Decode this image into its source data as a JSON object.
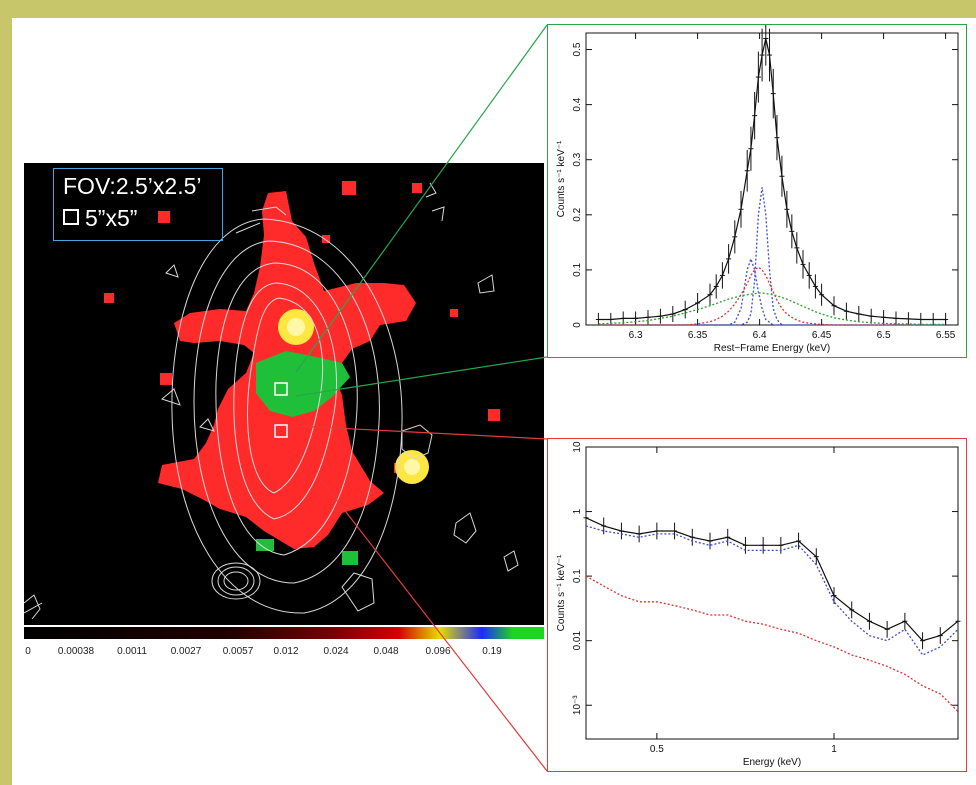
{
  "image_panel": {
    "fov_label": "FOV:2.5’x2.5’",
    "box_label": "5”x5”"
  },
  "colorbar": {
    "ticks": [
      "0",
      "0.00038",
      "0.0011",
      "0.0027",
      "0.0057",
      "0.012",
      "0.024",
      "0.048",
      "0.096",
      "0.19"
    ]
  },
  "colors": {
    "frame": "#c7c66a",
    "fov_box": "#4aa3d8",
    "upper_callout": "#2aa54a",
    "lower_callout": "#e23b3b",
    "red_emission": "#ff2a2a",
    "green_emission": "#1fbf3a",
    "yellow_emission": "#ffe640",
    "contours": "#d8d8d8"
  },
  "chart_data": [
    {
      "type": "line",
      "xlabel": "Rest−Frame Energy (keV)",
      "ylabel": "Counts s⁻¹ keV⁻¹",
      "xlim": [
        6.26,
        6.56
      ],
      "ylim": [
        0,
        0.53
      ],
      "xticks": [
        6.3,
        6.35,
        6.4,
        6.45,
        6.5,
        6.55
      ],
      "xtick_labels": [
        "6.3",
        "6.35",
        "6.4",
        "6.45",
        "6.5",
        "6.55"
      ],
      "yticks": [
        0,
        0.1,
        0.2,
        0.3,
        0.4,
        0.5
      ],
      "ytick_labels": [
        "0",
        "0.1",
        "0.2",
        "0.3",
        "0.4",
        "0.5"
      ],
      "x": [
        6.27,
        6.28,
        6.29,
        6.3,
        6.31,
        6.32,
        6.33,
        6.34,
        6.35,
        6.36,
        6.365,
        6.37,
        6.375,
        6.38,
        6.385,
        6.39,
        6.393,
        6.396,
        6.399,
        6.402,
        6.405,
        6.408,
        6.411,
        6.414,
        6.418,
        6.422,
        6.426,
        6.43,
        6.435,
        6.44,
        6.445,
        6.45,
        6.46,
        6.47,
        6.48,
        6.49,
        6.5,
        6.51,
        6.52,
        6.53,
        6.54,
        6.55
      ],
      "series": [
        {
          "values": [
            0.01,
            0.01,
            0.012,
            0.012,
            0.014,
            0.016,
            0.02,
            0.028,
            0.04,
            0.055,
            0.07,
            0.09,
            0.12,
            0.16,
            0.21,
            0.28,
            0.32,
            0.38,
            0.45,
            0.49,
            0.52,
            0.49,
            0.42,
            0.34,
            0.27,
            0.21,
            0.17,
            0.14,
            0.11,
            0.09,
            0.07,
            0.055,
            0.035,
            0.025,
            0.02,
            0.016,
            0.014,
            0.012,
            0.011,
            0.01,
            0.01,
            0.01
          ],
          "color": "#111111"
        },
        {
          "values": [
            0,
            0,
            0,
            0,
            0,
            0,
            0,
            0,
            0,
            0,
            0,
            0,
            0,
            0.005,
            0.03,
            0.1,
            0.12,
            0.1,
            0.06,
            0.03,
            0.01,
            0.005,
            0,
            0,
            0,
            0,
            0,
            0,
            0,
            0,
            0,
            0,
            0,
            0,
            0,
            0,
            0,
            0,
            0,
            0,
            0,
            0
          ],
          "color": "#3a4dd8"
        },
        {
          "values": [
            0,
            0,
            0,
            0,
            0,
            0,
            0,
            0,
            0,
            0,
            0,
            0,
            0,
            0,
            0,
            0.005,
            0.02,
            0.08,
            0.2,
            0.25,
            0.2,
            0.1,
            0.03,
            0.01,
            0,
            0,
            0,
            0,
            0,
            0,
            0,
            0,
            0,
            0,
            0,
            0,
            0,
            0,
            0,
            0,
            0,
            0
          ],
          "color": "#3a4dd8"
        },
        {
          "values": [
            0,
            0,
            0,
            0,
            0,
            0,
            0,
            0,
            0.002,
            0.006,
            0.01,
            0.016,
            0.025,
            0.038,
            0.055,
            0.075,
            0.09,
            0.1,
            0.105,
            0.1,
            0.09,
            0.075,
            0.06,
            0.045,
            0.03,
            0.02,
            0.014,
            0.009,
            0.005,
            0.003,
            0.002,
            0.001,
            0,
            0,
            0,
            0,
            0,
            0,
            0,
            0,
            0,
            0
          ],
          "color": "#e03030"
        },
        {
          "values": [
            0.002,
            0.003,
            0.004,
            0.006,
            0.008,
            0.012,
            0.016,
            0.022,
            0.028,
            0.035,
            0.039,
            0.043,
            0.047,
            0.05,
            0.053,
            0.055,
            0.056,
            0.057,
            0.058,
            0.058,
            0.057,
            0.056,
            0.055,
            0.053,
            0.05,
            0.047,
            0.043,
            0.039,
            0.034,
            0.029,
            0.024,
            0.02,
            0.013,
            0.009,
            0.006,
            0.004,
            0.003,
            0.002,
            0.002,
            0.001,
            0.001,
            0.001
          ],
          "color": "#2aa52a"
        }
      ]
    },
    {
      "type": "line",
      "log_y": true,
      "xlabel": "Energy (keV)",
      "ylabel": "Counts s⁻¹ keV⁻¹",
      "xlim": [
        0.3,
        1.35
      ],
      "ylim": [
        0.0003,
        10
      ],
      "xticks": [
        0.5,
        1.0
      ],
      "xtick_labels": [
        "0.5",
        "1"
      ],
      "yticks": [
        0.001,
        0.01,
        0.1,
        1,
        10
      ],
      "ytick_labels": [
        "10⁻³",
        "0.01",
        "0.1",
        "1",
        "10"
      ],
      "x": [
        0.3,
        0.35,
        0.4,
        0.45,
        0.5,
        0.55,
        0.6,
        0.65,
        0.7,
        0.75,
        0.8,
        0.85,
        0.9,
        0.95,
        1.0,
        1.05,
        1.1,
        1.15,
        1.2,
        1.25,
        1.3,
        1.35
      ],
      "series": [
        {
          "values": [
            0.8,
            0.6,
            0.5,
            0.45,
            0.5,
            0.5,
            0.4,
            0.35,
            0.4,
            0.3,
            0.3,
            0.3,
            0.35,
            0.2,
            0.05,
            0.03,
            0.02,
            0.015,
            0.02,
            0.01,
            0.012,
            0.02
          ],
          "color": "#111111"
        },
        {
          "values": [
            0.6,
            0.5,
            0.45,
            0.4,
            0.45,
            0.45,
            0.35,
            0.3,
            0.35,
            0.25,
            0.25,
            0.25,
            0.3,
            0.15,
            0.04,
            0.02,
            0.012,
            0.01,
            0.015,
            0.006,
            0.008,
            0.015
          ],
          "color": "#3a4dd8"
        },
        {
          "values": [
            0.1,
            0.07,
            0.05,
            0.04,
            0.04,
            0.035,
            0.03,
            0.025,
            0.025,
            0.02,
            0.018,
            0.015,
            0.013,
            0.01,
            0.008,
            0.006,
            0.005,
            0.004,
            0.003,
            0.002,
            0.0015,
            0.0008
          ],
          "color": "#e03030"
        }
      ]
    }
  ]
}
